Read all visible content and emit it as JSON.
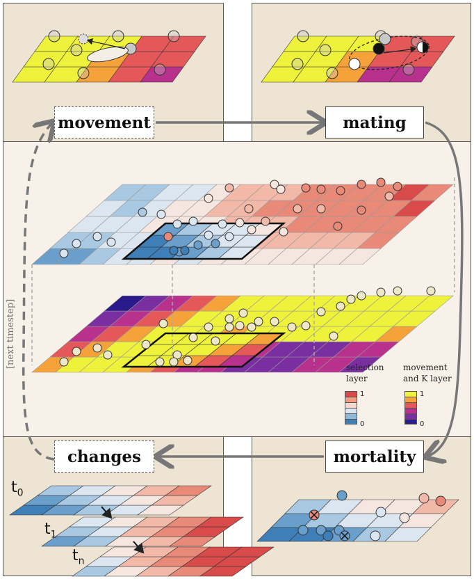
{
  "labels": {
    "movement": "movement",
    "mating": "mating",
    "mortality": "mortality",
    "changes": "changes",
    "next_timestep": "[next timestep]"
  },
  "legend": {
    "selection": {
      "title_line1": "selection",
      "title_line2": "layer",
      "max": "1",
      "min": "0",
      "colors": [
        "#d94a4a",
        "#f29c82",
        "#f7d9cf",
        "#dbe6f0",
        "#8fb8d9",
        "#3f7fb8"
      ]
    },
    "movement": {
      "title_line1": "movement",
      "title_line2": "and K layer",
      "max": "1",
      "min": "0",
      "colors": [
        "#eef23a",
        "#f5a23a",
        "#e5585a",
        "#b8318c",
        "#7a2fa0",
        "#2a1a8a"
      ]
    }
  },
  "time_labels": {
    "t0": "t",
    "t0_sub": "0",
    "t1": "t",
    "t1_sub": "1",
    "tn": "t",
    "tn_sub": "n"
  },
  "colors": {
    "panel_bg": "#ede4d3",
    "center_bg": "#f7f1ea",
    "arrow": "#777777"
  }
}
